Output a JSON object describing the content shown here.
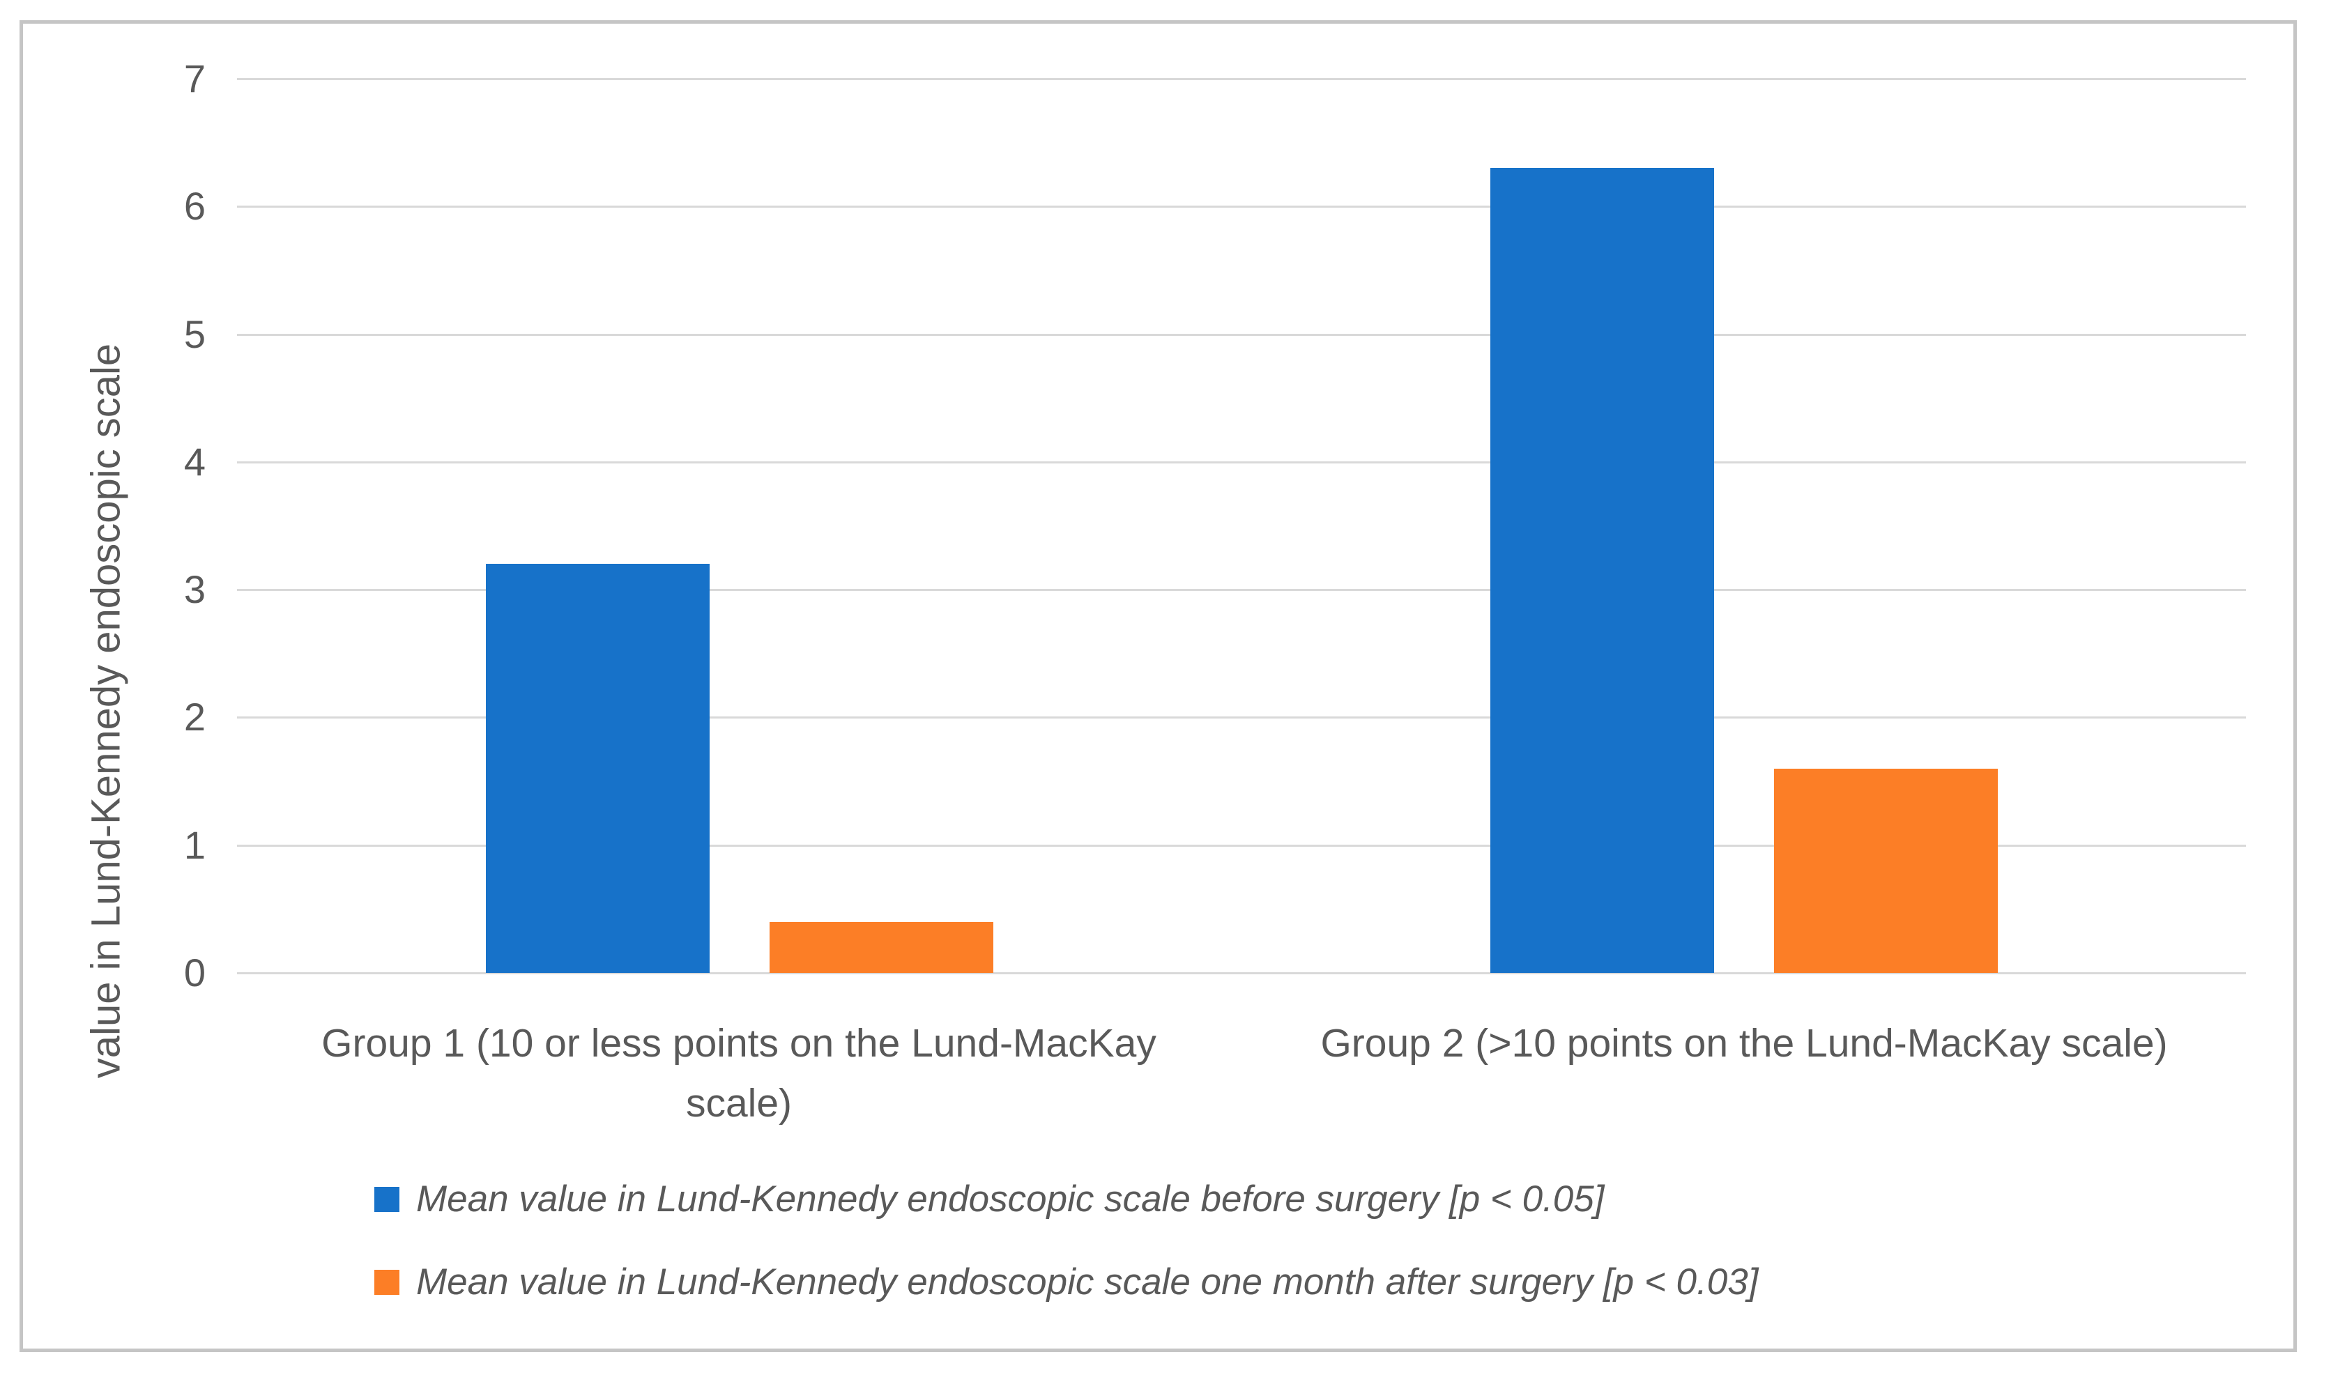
{
  "chart_data": {
    "type": "bar",
    "title": "",
    "xlabel": "",
    "ylabel": "value in Lund-Kennedy endoscopic scale",
    "ylim": [
      0,
      7
    ],
    "yticks": [
      0,
      1,
      2,
      3,
      4,
      5,
      6,
      7
    ],
    "grid": true,
    "legend_position": "bottom-left",
    "categories": [
      "Group 1 (10 or less points on the Lund-MacKay scale)",
      "Group 2 (>10 points on the Lund-MacKay scale)"
    ],
    "series": [
      {
        "name": "Mean value in Lund-Kennedy endoscopic scale before surgery [p < 0.05]",
        "color": "#1772C9",
        "values": [
          3.2,
          6.3
        ]
      },
      {
        "name": "Mean value in Lund-Kennedy endoscopic scale one month after surgery [p < 0.03]",
        "color": "#FC7E26",
        "values": [
          0.4,
          1.6
        ]
      }
    ]
  },
  "colors": {
    "gridline": "#D9D9D9",
    "axis_text": "#595959",
    "frame_border": "#C5C5C5",
    "background": "#FFFFFF"
  }
}
